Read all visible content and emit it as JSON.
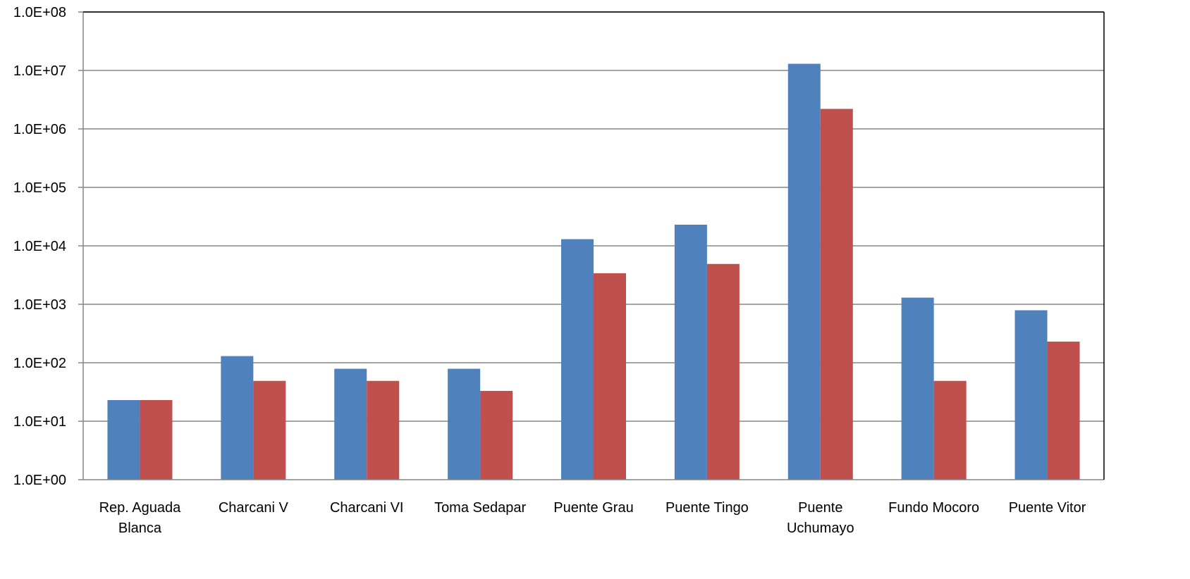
{
  "chart_data": {
    "type": "bar",
    "title": "",
    "xlabel": "",
    "ylabel": "",
    "yscale": "log",
    "ylim": [
      1,
      100000000
    ],
    "grid": true,
    "y_ticks": [
      "1.0E+00",
      "1.0E+01",
      "1.0E+02",
      "1.0E+03",
      "1.0E+04",
      "1.0E+05",
      "1.0E+06",
      "1.0E+07",
      "1.0E+08"
    ],
    "categories": [
      [
        "Rep. Aguada",
        "Blanca"
      ],
      [
        "Charcani V"
      ],
      [
        "Charcani VI"
      ],
      [
        "Toma Sedapar"
      ],
      [
        "Puente Grau"
      ],
      [
        "Puente Tingo"
      ],
      [
        "Puente",
        "Uchumayo"
      ],
      [
        "Fundo Mocoro"
      ],
      [
        "Puente Vitor"
      ]
    ],
    "series": [
      {
        "color": "#4F81BD",
        "values": [
          23,
          130,
          79,
          79,
          13000,
          23000,
          13000000,
          1300,
          790
        ]
      },
      {
        "color": "#C0504D",
        "values": [
          23,
          49,
          49,
          33,
          3400,
          4900,
          2200000,
          49,
          230
        ]
      }
    ]
  }
}
